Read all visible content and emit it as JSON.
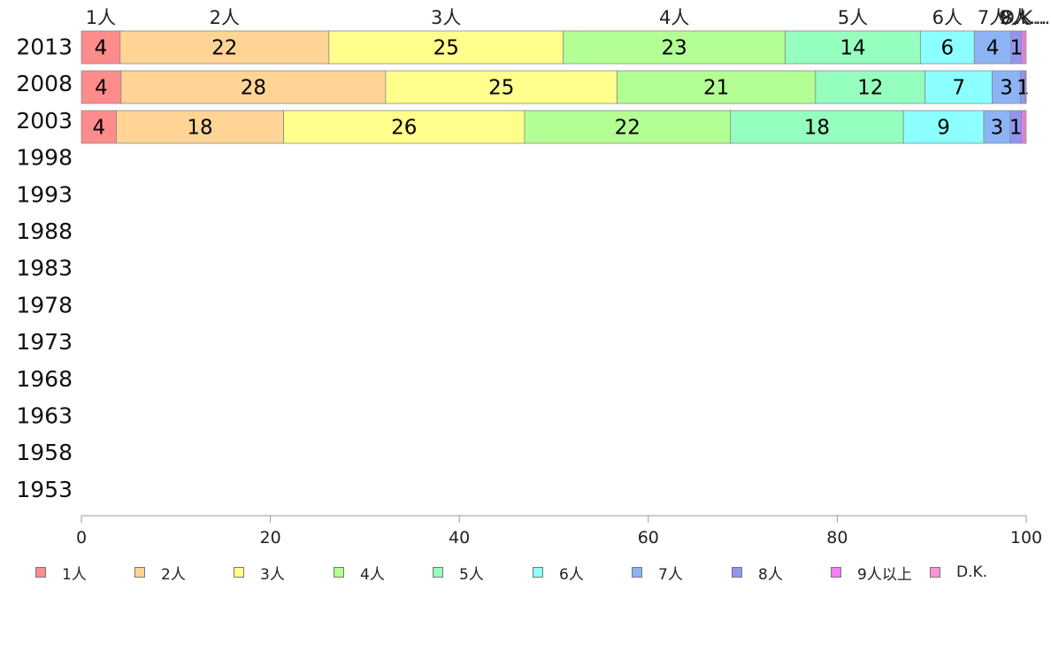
{
  "chart_data": {
    "type": "bar",
    "orientation": "horizontal",
    "stacked": true,
    "categories": [
      "2013",
      "2008",
      "2003",
      "1998",
      "1993",
      "1988",
      "1983",
      "1978",
      "1973",
      "1968",
      "1963",
      "1958",
      "1953"
    ],
    "series": [
      {
        "name": "1人",
        "color": "#ff8c8c",
        "values": [
          4.1,
          4.2,
          3.7,
          null,
          null,
          null,
          null,
          null,
          null,
          null,
          null,
          null,
          null
        ],
        "labels": [
          "4",
          "4",
          "4"
        ]
      },
      {
        "name": "2人",
        "color": "#ffd494",
        "values": [
          22.1,
          28.0,
          17.7,
          null,
          null,
          null,
          null,
          null,
          null,
          null,
          null,
          null,
          null
        ],
        "labels": [
          "22",
          "28",
          "18"
        ]
      },
      {
        "name": "3人",
        "color": "#ffff8c",
        "values": [
          24.8,
          24.5,
          25.5,
          null,
          null,
          null,
          null,
          null,
          null,
          null,
          null,
          null,
          null
        ],
        "labels": [
          "25",
          "25",
          "26"
        ]
      },
      {
        "name": "4人",
        "color": "#b4ff94",
        "values": [
          23.5,
          21.0,
          21.8,
          null,
          null,
          null,
          null,
          null,
          null,
          null,
          null,
          null,
          null
        ],
        "labels": [
          "23",
          "21",
          "22"
        ]
      },
      {
        "name": "5人",
        "color": "#94ffbe",
        "values": [
          14.3,
          11.6,
          18.3,
          null,
          null,
          null,
          null,
          null,
          null,
          null,
          null,
          null,
          null
        ],
        "labels": [
          "14",
          "12",
          "18"
        ]
      },
      {
        "name": "6人",
        "color": "#8cffff",
        "values": [
          5.7,
          7.1,
          8.5,
          null,
          null,
          null,
          null,
          null,
          null,
          null,
          null,
          null,
          null
        ],
        "labels": [
          "6",
          "7",
          "9"
        ]
      },
      {
        "name": "7人",
        "color": "#8cb4f5",
        "values": [
          3.9,
          3.0,
          2.8,
          null,
          null,
          null,
          null,
          null,
          null,
          null,
          null,
          null,
          null
        ],
        "labels": [
          "4",
          "3",
          "3"
        ]
      },
      {
        "name": "8人",
        "color": "#9494f5",
        "values": [
          1.1,
          0.5,
          1.2,
          null,
          null,
          null,
          null,
          null,
          null,
          null,
          null,
          null,
          null
        ],
        "labels": [
          "1",
          "1",
          "1"
        ]
      },
      {
        "name": "9人以上",
        "color": "#f57cf5",
        "values": [
          0.3,
          0.1,
          0.3,
          null,
          null,
          null,
          null,
          null,
          null,
          null,
          null,
          null,
          null
        ],
        "labels": [
          "",
          "",
          ""
        ]
      },
      {
        "name": "D.K.",
        "color": "#ff94d4",
        "values": [
          0.2,
          0.0,
          0.2,
          null,
          null,
          null,
          null,
          null,
          null,
          null,
          null,
          null,
          null
        ],
        "labels": [
          "",
          "",
          ""
        ]
      }
    ],
    "top_labels": [
      "1人",
      "2人",
      "3人",
      "4人",
      "5人",
      "6人",
      "7人",
      "8人",
      "9人...",
      "D.K..."
    ],
    "xlim": [
      0,
      100
    ],
    "xticks": [
      0,
      20,
      40,
      60,
      80,
      100
    ],
    "grid": false,
    "legend_position": "bottom"
  }
}
